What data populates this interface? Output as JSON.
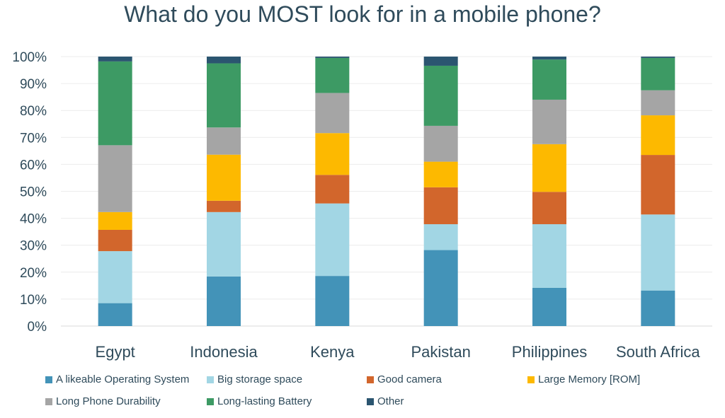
{
  "chart_data": {
    "type": "bar",
    "stacked": true,
    "title": "What do you MOST look for in a mobile phone?",
    "categories": [
      "Egypt",
      "Indonesia",
      "Kenya",
      "Pakistan",
      "Philippines",
      "South Africa"
    ],
    "ylim": [
      0,
      100
    ],
    "yticks": [
      "0%",
      "10%",
      "20%",
      "30%",
      "40%",
      "50%",
      "60%",
      "70%",
      "80%",
      "90%",
      "100%"
    ],
    "grid": true,
    "legend_position": "bottom",
    "series": [
      {
        "name": "A likeable Operating System",
        "color": "#4393b8",
        "values": [
          8.5,
          18.4,
          18.6,
          28.2,
          14.2,
          13.2
        ]
      },
      {
        "name": "Big storage space",
        "color": "#a2d6e4",
        "values": [
          19.3,
          23.9,
          26.9,
          9.6,
          23.6,
          28.2
        ]
      },
      {
        "name": "Good camera",
        "color": "#d2662c",
        "values": [
          7.9,
          4.2,
          10.6,
          13.7,
          12.0,
          22.1
        ]
      },
      {
        "name": "Large Memory [ROM]",
        "color": "#fdb900",
        "values": [
          6.6,
          17.1,
          15.5,
          9.5,
          17.7,
          14.7
        ]
      },
      {
        "name": "Long Phone Durability",
        "color": "#a5a5a5",
        "values": [
          24.8,
          10.1,
          14.9,
          13.3,
          16.5,
          9.3
        ]
      },
      {
        "name": "Long-lasting Battery",
        "color": "#3d9a64",
        "values": [
          31.1,
          23.8,
          13.0,
          22.3,
          14.9,
          12.0
        ]
      },
      {
        "name": "Other",
        "color": "#2b5570",
        "values": [
          1.8,
          2.5,
          0.5,
          3.4,
          1.1,
          0.5
        ]
      }
    ]
  }
}
